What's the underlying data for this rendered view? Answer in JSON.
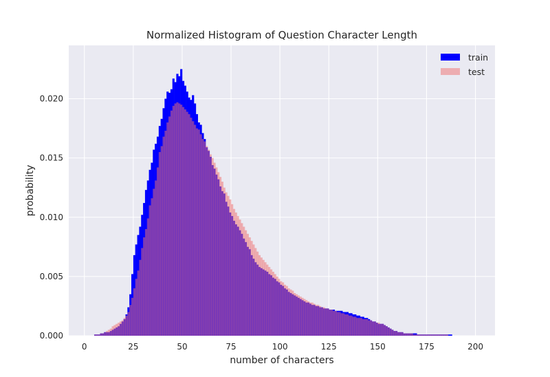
{
  "chart_data": {
    "type": "bar",
    "subtype": "overlaid-histogram",
    "title": "Normalized Histogram of Question Character Length",
    "xlabel": "number of characters",
    "ylabel": "probability",
    "xlim": [
      -8,
      210
    ],
    "ylim": [
      0,
      0.0245
    ],
    "xticks": [
      0,
      25,
      50,
      75,
      100,
      125,
      150,
      175,
      200
    ],
    "yticks": [
      0.0,
      0.005,
      0.01,
      0.015,
      0.02
    ],
    "ytick_labels": [
      "0.000",
      "0.005",
      "0.010",
      "0.015",
      "0.020"
    ],
    "grid": true,
    "legend_position": "top-right",
    "bin_width": 1,
    "x_start": 0,
    "background_color": "#eaeaf2",
    "series": [
      {
        "name": "train",
        "color": "#0000ff",
        "alpha": 1.0,
        "values": [
          0.0,
          0.0,
          0.0,
          0.0,
          0.0,
          0.0001,
          0.0001,
          0.0001,
          0.0002,
          0.0002,
          0.0003,
          0.0003,
          0.0003,
          0.0004,
          0.0005,
          0.0006,
          0.0007,
          0.0008,
          0.001,
          0.0012,
          0.0014,
          0.0018,
          0.0024,
          0.0035,
          0.0052,
          0.0068,
          0.0077,
          0.0085,
          0.0092,
          0.0102,
          0.0112,
          0.0123,
          0.0131,
          0.014,
          0.0146,
          0.0157,
          0.0162,
          0.0168,
          0.0177,
          0.0183,
          0.0192,
          0.02,
          0.0206,
          0.0205,
          0.0208,
          0.0217,
          0.0214,
          0.0221,
          0.0219,
          0.0225,
          0.0215,
          0.0211,
          0.0206,
          0.0201,
          0.0199,
          0.0203,
          0.0196,
          0.0187,
          0.018,
          0.0178,
          0.0171,
          0.0166,
          0.0159,
          0.0156,
          0.0151,
          0.0144,
          0.0141,
          0.0136,
          0.0132,
          0.0126,
          0.0122,
          0.012,
          0.0113,
          0.0109,
          0.0104,
          0.0101,
          0.0097,
          0.0094,
          0.0092,
          0.0089,
          0.0086,
          0.0082,
          0.0079,
          0.0075,
          0.0073,
          0.0068,
          0.0065,
          0.0062,
          0.006,
          0.0058,
          0.0057,
          0.0056,
          0.0055,
          0.0054,
          0.0052,
          0.0051,
          0.0049,
          0.0048,
          0.0046,
          0.0045,
          0.0043,
          0.0042,
          0.004,
          0.0039,
          0.0037,
          0.0036,
          0.0035,
          0.0034,
          0.0033,
          0.0032,
          0.0031,
          0.003,
          0.0029,
          0.0028,
          0.0028,
          0.0027,
          0.0026,
          0.0026,
          0.0025,
          0.0025,
          0.0024,
          0.0024,
          0.0023,
          0.0023,
          0.0023,
          0.0022,
          0.0022,
          0.0022,
          0.0021,
          0.0021,
          0.0021,
          0.0021,
          0.002,
          0.002,
          0.002,
          0.0019,
          0.0019,
          0.0018,
          0.0018,
          0.0017,
          0.0017,
          0.0016,
          0.0016,
          0.0015,
          0.0015,
          0.0014,
          0.0013,
          0.0012,
          0.0012,
          0.0011,
          0.001,
          0.001,
          0.001,
          0.0009,
          0.0008,
          0.0007,
          0.0006,
          0.0005,
          0.0004,
          0.0004,
          0.0003,
          0.0003,
          0.0003,
          0.0002,
          0.0002,
          0.0002,
          0.0002,
          0.0002,
          0.0002,
          0.0002,
          0.0001,
          0.0001,
          0.0001,
          0.0001,
          0.0001,
          0.0001,
          0.0001,
          0.0001,
          0.0001,
          0.0001,
          0.0001,
          0.0001,
          0.0001,
          0.0001,
          0.0001,
          0.0001,
          0.0001,
          0.0001,
          0.0,
          0.0,
          0.0,
          0.0,
          0.0,
          0.0,
          0.0,
          0.0,
          0.0,
          0.0,
          0.0,
          0.0
        ]
      },
      {
        "name": "test",
        "color": "#f07070",
        "alpha": 0.5,
        "values": [
          0.0,
          0.0,
          0.0,
          0.0,
          0.0,
          0.0001,
          0.0001,
          0.0001,
          0.0002,
          0.0002,
          0.0003,
          0.0004,
          0.0005,
          0.0006,
          0.0008,
          0.0009,
          0.001,
          0.0011,
          0.0012,
          0.0013,
          0.0015,
          0.0017,
          0.002,
          0.0026,
          0.0032,
          0.004,
          0.0048,
          0.0055,
          0.0064,
          0.0074,
          0.0083,
          0.009,
          0.0099,
          0.011,
          0.0116,
          0.0124,
          0.0131,
          0.0142,
          0.0155,
          0.016,
          0.0168,
          0.0173,
          0.018,
          0.0185,
          0.019,
          0.0194,
          0.0196,
          0.0197,
          0.0196,
          0.0195,
          0.0193,
          0.0191,
          0.0189,
          0.0187,
          0.0184,
          0.0181,
          0.0178,
          0.0175,
          0.0174,
          0.017,
          0.0166,
          0.0164,
          0.016,
          0.0157,
          0.0153,
          0.015,
          0.0146,
          0.0142,
          0.0138,
          0.0134,
          0.013,
          0.0125,
          0.0121,
          0.0118,
          0.0115,
          0.0111,
          0.0107,
          0.0104,
          0.0101,
          0.0098,
          0.0095,
          0.0092,
          0.0089,
          0.0086,
          0.0083,
          0.008,
          0.0077,
          0.0074,
          0.0071,
          0.0068,
          0.0066,
          0.0064,
          0.0062,
          0.006,
          0.0058,
          0.0056,
          0.0054,
          0.0052,
          0.005,
          0.0048,
          0.0046,
          0.0045,
          0.0043,
          0.0042,
          0.004,
          0.0039,
          0.0038,
          0.0036,
          0.0035,
          0.0034,
          0.0033,
          0.0032,
          0.0031,
          0.003,
          0.0029,
          0.0028,
          0.0028,
          0.0027,
          0.0026,
          0.0026,
          0.0025,
          0.0024,
          0.0024,
          0.0023,
          0.0023,
          0.0022,
          0.0022,
          0.0021,
          0.0021,
          0.002,
          0.002,
          0.0019,
          0.0019,
          0.0018,
          0.0018,
          0.0017,
          0.0017,
          0.0016,
          0.0016,
          0.0015,
          0.0015,
          0.0015,
          0.0014,
          0.0014,
          0.0014,
          0.0013,
          0.0013,
          0.0012,
          0.0012,
          0.0011,
          0.0011,
          0.001,
          0.001,
          0.0009,
          0.0008,
          0.0007,
          0.0006,
          0.0005,
          0.0004,
          0.0004,
          0.0003,
          0.0003,
          0.0003,
          0.0002,
          0.0002,
          0.0002,
          0.0002,
          0.0002,
          0.0001,
          0.0001,
          0.0001,
          0.0001,
          0.0001,
          0.0001,
          0.0001,
          0.0001,
          0.0001,
          0.0001,
          0.0001,
          0.0001,
          0.0001,
          0.0001,
          0.0001,
          0.0001,
          0.0001,
          0.0001,
          0.0,
          0.0,
          0.0,
          0.0,
          0.0,
          0.0,
          0.0,
          0.0,
          0.0,
          0.0,
          0.0,
          0.0,
          0.0,
          0.0
        ]
      }
    ]
  }
}
